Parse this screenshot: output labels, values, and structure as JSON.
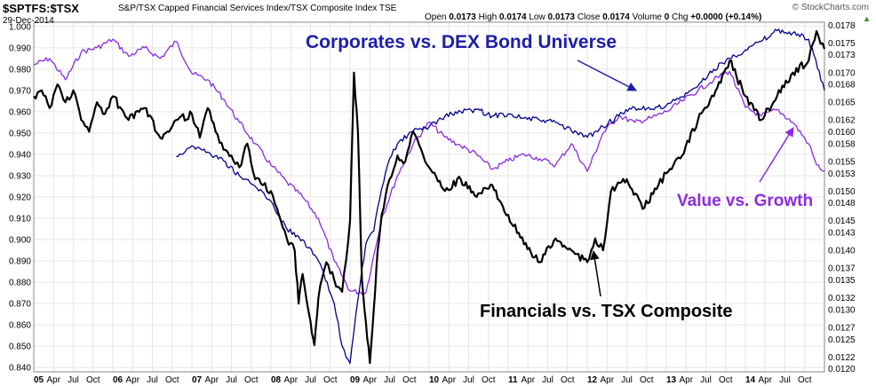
{
  "header": {
    "ticker": "$SPTFS:$TSX",
    "description": "S&P/TSX Capped Financial Services Index/TSX Composite Index",
    "exchange": "TSE",
    "date": "29-Dec-2014",
    "open_label": "Open",
    "open": "0.0173",
    "high_label": "High",
    "high": "0.0174",
    "low_label": "Low",
    "low": "0.0173",
    "close_label": "Close",
    "close": "0.0174",
    "volume_label": "Volume",
    "volume": "0",
    "chg_label": "Chg",
    "chg": "+0.0000 (+0.14%)",
    "brand": "© StockCharts.com"
  },
  "annotations": {
    "corporates": "Corporates vs. DEX Bond Universe",
    "value_growth": "Value vs. Growth",
    "financials": "Financials vs. TSX Composite"
  },
  "colors": {
    "financials": "#000000",
    "corporates": "#00008b",
    "value_growth": "#8a2be2",
    "grid": "#e6e6e6",
    "annotation_corporates": "#1e1ea8",
    "annotation_value": "#8a2be2",
    "annotation_financials": "#000000"
  },
  "chart_data": {
    "type": "line",
    "x_tick_labels": [
      "05",
      "Apr",
      "Jul",
      "Oct",
      "06",
      "Apr",
      "Jul",
      "Oct",
      "07",
      "Apr",
      "Jul",
      "Oct",
      "08",
      "Apr",
      "Jul",
      "Oct",
      "09",
      "Apr",
      "Jul",
      "Oct",
      "10",
      "Apr",
      "Jul",
      "Oct",
      "11",
      "Apr",
      "Jul",
      "Oct",
      "12",
      "Apr",
      "Jul",
      "Oct",
      "13",
      "Apr",
      "Jul",
      "Oct",
      "14",
      "Apr",
      "Jul",
      "Oct"
    ],
    "x_range": [
      2005.0,
      2015.0
    ],
    "left_axis": {
      "ticks": [
        "1.000",
        "0.990",
        "0.980",
        "0.970",
        "0.960",
        "0.950",
        "0.940",
        "0.930",
        "0.920",
        "0.910",
        "0.900",
        "0.890",
        "0.880",
        "0.870",
        "0.860",
        "0.850",
        "0.840"
      ],
      "range": [
        0.838,
        1.002
      ]
    },
    "right_axis": {
      "ticks": [
        "0.0178",
        "0.0175",
        "0.0173",
        "0.0170",
        "0.0168",
        "0.0165",
        "0.0162",
        "0.0160",
        "0.0158",
        "0.0155",
        "0.0153",
        "0.0150",
        "0.0148",
        "0.0145",
        "0.0143",
        "0.0140",
        "0.0137",
        "0.0135",
        "0.0132",
        "0.0130",
        "0.0127",
        "0.0125",
        "0.0122",
        "0.0120"
      ],
      "range": [
        0.01195,
        0.01785
      ]
    },
    "grid": true,
    "series": [
      {
        "key": "financials",
        "axis": "right",
        "x": [
          2005.0,
          2005.1,
          2005.2,
          2005.3,
          2005.4,
          2005.5,
          2005.6,
          2005.7,
          2005.8,
          2005.9,
          2006.0,
          2006.2,
          2006.4,
          2006.6,
          2006.8,
          2007.0,
          2007.1,
          2007.2,
          2007.3,
          2007.4,
          2007.5,
          2007.6,
          2007.7,
          2007.8,
          2007.9,
          2008.0,
          2008.1,
          2008.2,
          2008.3,
          2008.35,
          2008.4,
          2008.5,
          2008.55,
          2008.6,
          2008.7,
          2008.8,
          2008.9,
          2009.0,
          2009.05,
          2009.1,
          2009.15,
          2009.2,
          2009.25,
          2009.3,
          2009.35,
          2009.4,
          2009.5,
          2009.6,
          2009.7,
          2009.8,
          2009.9,
          2010.0,
          2010.2,
          2010.4,
          2010.6,
          2010.8,
          2011.0,
          2011.2,
          2011.4,
          2011.6,
          2011.8,
          2012.0,
          2012.1,
          2012.2,
          2012.3,
          2012.5,
          2012.7,
          2012.9,
          2013.0,
          2013.2,
          2013.4,
          2013.6,
          2013.8,
          2014.0,
          2014.2,
          2014.4,
          2014.6,
          2014.8,
          2014.9,
          2015.0
        ],
        "y": [
          0.0166,
          0.0167,
          0.0164,
          0.0168,
          0.0165,
          0.0167,
          0.0162,
          0.016,
          0.0165,
          0.0163,
          0.0166,
          0.0162,
          0.0164,
          0.0159,
          0.0162,
          0.0163,
          0.0159,
          0.0164,
          0.016,
          0.0157,
          0.0156,
          0.0154,
          0.0158,
          0.0152,
          0.0151,
          0.015,
          0.0146,
          0.0142,
          0.014,
          0.0131,
          0.0136,
          0.0128,
          0.0124,
          0.0132,
          0.0138,
          0.0135,
          0.0133,
          0.0145,
          0.017,
          0.016,
          0.0135,
          0.0128,
          0.0121,
          0.013,
          0.014,
          0.0146,
          0.0152,
          0.0156,
          0.0155,
          0.016,
          0.0157,
          0.0154,
          0.015,
          0.0152,
          0.0149,
          0.0151,
          0.0146,
          0.0141,
          0.0138,
          0.0142,
          0.014,
          0.0138,
          0.0142,
          0.014,
          0.015,
          0.0152,
          0.0147,
          0.0151,
          0.0153,
          0.0156,
          0.0162,
          0.0166,
          0.0172,
          0.0166,
          0.0162,
          0.0166,
          0.017,
          0.0172,
          0.0177,
          0.0174
        ]
      },
      {
        "key": "corporates",
        "axis": "left",
        "x": [
          2006.8,
          2007.0,
          2007.2,
          2007.4,
          2007.6,
          2007.8,
          2008.0,
          2008.2,
          2008.4,
          2008.6,
          2008.8,
          2008.9,
          2009.0,
          2009.1,
          2009.2,
          2009.3,
          2009.4,
          2009.5,
          2009.6,
          2009.8,
          2010.0,
          2010.2,
          2010.4,
          2010.6,
          2010.8,
          2011.0,
          2011.2,
          2011.4,
          2011.6,
          2011.8,
          2012.0,
          2012.2,
          2012.4,
          2012.6,
          2012.8,
          2013.0,
          2013.2,
          2013.4,
          2013.6,
          2013.8,
          2014.0,
          2014.2,
          2014.4,
          2014.6,
          2014.8,
          2015.0
        ],
        "y": [
          0.939,
          0.944,
          0.941,
          0.937,
          0.93,
          0.925,
          0.918,
          0.905,
          0.9,
          0.89,
          0.87,
          0.85,
          0.842,
          0.872,
          0.898,
          0.904,
          0.924,
          0.938,
          0.945,
          0.951,
          0.953,
          0.958,
          0.96,
          0.961,
          0.958,
          0.959,
          0.957,
          0.956,
          0.955,
          0.951,
          0.948,
          0.953,
          0.958,
          0.962,
          0.961,
          0.963,
          0.967,
          0.972,
          0.98,
          0.985,
          0.989,
          0.993,
          0.998,
          0.997,
          0.994,
          0.97
        ]
      },
      {
        "key": "value_growth",
        "axis": "left",
        "x": [
          2005.0,
          2005.2,
          2005.4,
          2005.6,
          2005.8,
          2006.0,
          2006.2,
          2006.4,
          2006.6,
          2006.8,
          2007.0,
          2007.2,
          2007.4,
          2007.6,
          2007.8,
          2008.0,
          2008.2,
          2008.4,
          2008.6,
          2008.8,
          2009.0,
          2009.2,
          2009.4,
          2009.6,
          2009.8,
          2010.0,
          2010.2,
          2010.4,
          2010.6,
          2010.8,
          2011.0,
          2011.2,
          2011.4,
          2011.6,
          2011.8,
          2012.0,
          2012.2,
          2012.4,
          2012.6,
          2012.8,
          2013.0,
          2013.2,
          2013.4,
          2013.6,
          2013.8,
          2014.0,
          2014.2,
          2014.4,
          2014.6,
          2014.8,
          2014.9,
          2015.0
        ],
        "y": [
          0.982,
          0.985,
          0.975,
          0.988,
          0.99,
          0.994,
          0.986,
          0.99,
          0.985,
          0.993,
          0.978,
          0.975,
          0.966,
          0.955,
          0.945,
          0.935,
          0.927,
          0.92,
          0.91,
          0.89,
          0.876,
          0.875,
          0.91,
          0.93,
          0.945,
          0.955,
          0.948,
          0.944,
          0.94,
          0.933,
          0.937,
          0.94,
          0.938,
          0.935,
          0.945,
          0.932,
          0.95,
          0.958,
          0.955,
          0.957,
          0.96,
          0.965,
          0.97,
          0.975,
          0.979,
          0.962,
          0.958,
          0.961,
          0.955,
          0.945,
          0.935,
          0.932
        ]
      }
    ]
  }
}
